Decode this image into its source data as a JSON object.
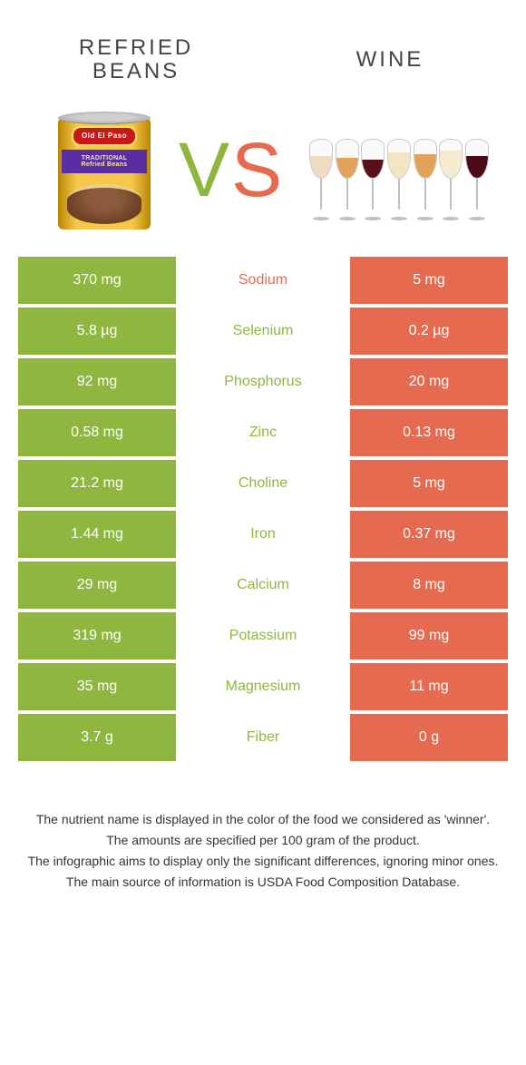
{
  "colors": {
    "green": "#8fb63f",
    "orange": "#e56a4f",
    "text": "#333333",
    "white": "#ffffff"
  },
  "header": {
    "left_label_line1": "Refried",
    "left_label_line2": "beans",
    "right_label": "Wine"
  },
  "hero": {
    "can_logo": "Old El Paso",
    "can_banner_line1": "TRADITIONAL",
    "can_banner_line2": "Refried Beans",
    "vs_v": "V",
    "vs_s": "S",
    "wine_glasses": [
      {
        "fill_height": 24,
        "color": "#f0dcc0"
      },
      {
        "fill_height": 22,
        "color": "#e1a35a"
      },
      {
        "fill_height": 20,
        "color": "#5a0e1a"
      },
      {
        "fill_height": 28,
        "color": "#f2e5c4"
      },
      {
        "fill_height": 26,
        "color": "#e1a35a"
      },
      {
        "fill_height": 30,
        "color": "#f5ecd0"
      },
      {
        "fill_height": 24,
        "color": "#4a0a16"
      }
    ]
  },
  "table": {
    "left_bg": "#8fb63f",
    "right_bg": "#e56a4f",
    "rows": [
      {
        "left": "370 mg",
        "mid": "Sodium",
        "right": "5 mg",
        "mid_color": "#e56a4f"
      },
      {
        "left": "5.8 µg",
        "mid": "Selenium",
        "right": "0.2 µg",
        "mid_color": "#8fb63f"
      },
      {
        "left": "92 mg",
        "mid": "Phosphorus",
        "right": "20 mg",
        "mid_color": "#8fb63f"
      },
      {
        "left": "0.58 mg",
        "mid": "Zinc",
        "right": "0.13 mg",
        "mid_color": "#8fb63f"
      },
      {
        "left": "21.2 mg",
        "mid": "Choline",
        "right": "5 mg",
        "mid_color": "#8fb63f"
      },
      {
        "left": "1.44 mg",
        "mid": "Iron",
        "right": "0.37 mg",
        "mid_color": "#8fb63f"
      },
      {
        "left": "29 mg",
        "mid": "Calcium",
        "right": "8 mg",
        "mid_color": "#8fb63f"
      },
      {
        "left": "319 mg",
        "mid": "Potassium",
        "right": "99 mg",
        "mid_color": "#8fb63f"
      },
      {
        "left": "35 mg",
        "mid": "Magnesium",
        "right": "11 mg",
        "mid_color": "#8fb63f"
      },
      {
        "left": "3.7 g",
        "mid": "Fiber",
        "right": "0 g",
        "mid_color": "#8fb63f"
      }
    ]
  },
  "footnotes": {
    "line1": "The nutrient name is displayed in the color of the food we considered as 'winner'.",
    "line2": "The amounts are specified per 100 gram of the product.",
    "line3": "The infographic aims to display only the significant differences, ignoring minor ones.",
    "line4": "The main source of information is USDA Food Composition Database."
  }
}
